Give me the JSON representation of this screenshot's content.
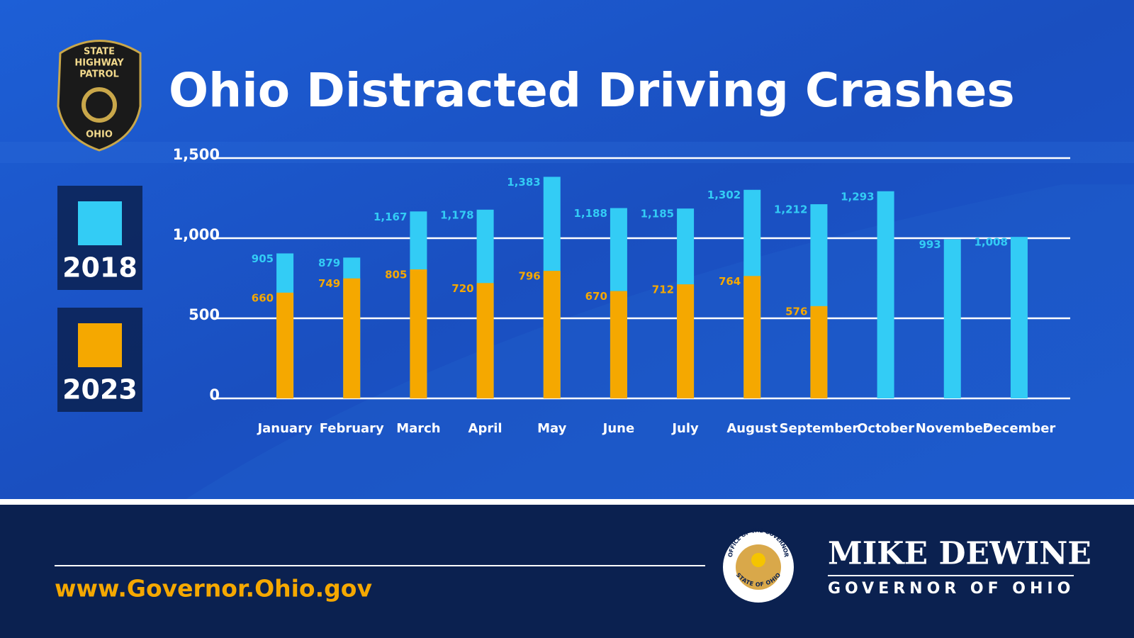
{
  "chart_data": {
    "type": "bar",
    "title": "Ohio Distracted Driving Crashes",
    "categories": [
      "January",
      "February",
      "March",
      "April",
      "May",
      "June",
      "July",
      "August",
      "September",
      "October",
      "November",
      "December"
    ],
    "series": [
      {
        "name": "2018",
        "color": "#33ccf5",
        "values": [
          905,
          879,
          1167,
          1178,
          1383,
          1188,
          1185,
          1302,
          1212,
          1293,
          993,
          1008
        ],
        "value_labels": [
          "905",
          "879",
          "1,167",
          "1,178",
          "1,383",
          "1,188",
          "1,185",
          "1,302",
          "1,212",
          "1,293",
          "993",
          "1,008"
        ]
      },
      {
        "name": "2023",
        "color": "#f5a800",
        "values": [
          660,
          749,
          805,
          720,
          796,
          670,
          712,
          764,
          576,
          null,
          null,
          null
        ]
      }
    ],
    "ylim": [
      0,
      1500
    ],
    "yticks": [
      0,
      500,
      {
        "value": 1000,
        "label": "1,000"
      },
      {
        "value": 1500,
        "label": "1,500"
      }
    ],
    "grid": true,
    "legend": "left"
  },
  "badge": {
    "lines": [
      "STATE",
      "HIGHWAY",
      "PATROL",
      "OHIO"
    ]
  },
  "footer": {
    "url": "www.Governor.Ohio.gov",
    "name": "MIKE DEWINE",
    "role": "GOVERNOR OF OHIO",
    "seal_top": "OFFICE OF THE GOVERNOR",
    "seal_bottom": "STATE OF OHIO"
  }
}
